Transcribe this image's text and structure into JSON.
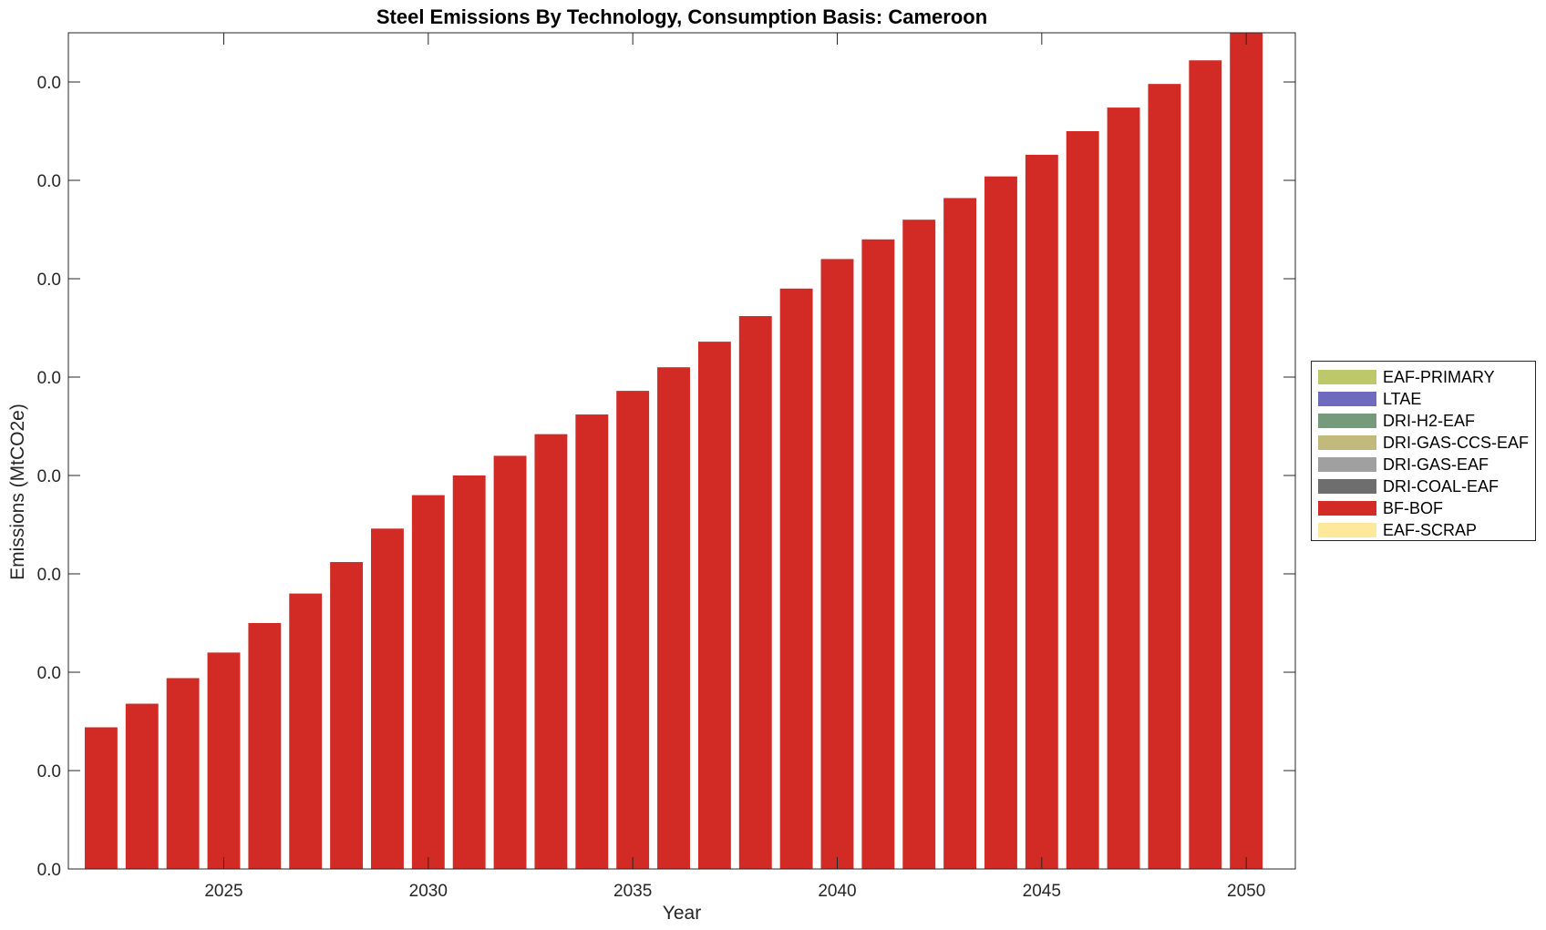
{
  "chart_data": {
    "type": "bar",
    "stacked": true,
    "title": "Steel Emissions By Technology, Consumption Basis: Cameroon",
    "xlabel": "Year",
    "ylabel": "Emissions (MtCO2e)",
    "x": [
      2022,
      2023,
      2024,
      2025,
      2026,
      2027,
      2028,
      2029,
      2030,
      2031,
      2032,
      2033,
      2034,
      2035,
      2036,
      2037,
      2038,
      2039,
      2040,
      2041,
      2042,
      2043,
      2044,
      2045,
      2046,
      2047,
      2048,
      2049,
      2050
    ],
    "xticks": [
      2025,
      2030,
      2035,
      2040,
      2045,
      2050
    ],
    "xticklabels": [
      "2025",
      "2030",
      "2035",
      "2040",
      "2045",
      "2050"
    ],
    "xlim": [
      2021.2,
      2051.2
    ],
    "ylim": [
      0,
      0.0425
    ],
    "yticks": [
      0,
      0.005,
      0.01,
      0.015,
      0.02,
      0.025,
      0.03,
      0.035,
      0.04
    ],
    "yticklabels": [
      "0.0",
      "0.0",
      "0.0",
      "0.0",
      "0.0",
      "0.0",
      "0.0",
      "0.0",
      "0.0"
    ],
    "grid": false,
    "legend_position": "right-outside",
    "series": [
      {
        "name": "EAF-PRIMARY",
        "color": "#bcc86a",
        "values": [
          0,
          0,
          0,
          0,
          0,
          0,
          0,
          0,
          0,
          0,
          0,
          0,
          0,
          0,
          0,
          0,
          0,
          0,
          0,
          0,
          0,
          0,
          0,
          0,
          0,
          0,
          0,
          0,
          0
        ]
      },
      {
        "name": "LTAE",
        "color": "#6e6abd",
        "values": [
          0,
          0,
          0,
          0,
          0,
          0,
          0,
          0,
          0,
          0,
          0,
          0,
          0,
          0,
          0,
          0,
          0,
          0,
          0,
          0,
          0,
          0,
          0,
          0,
          0,
          0,
          0,
          0,
          0
        ]
      },
      {
        "name": "DRI-H2-EAF",
        "color": "#759a7c",
        "values": [
          0,
          0,
          0,
          0,
          0,
          0,
          0,
          0,
          0,
          0,
          0,
          0,
          0,
          0,
          0,
          0,
          0,
          0,
          0,
          0,
          0,
          0,
          0,
          0,
          0,
          0,
          0,
          0,
          0
        ]
      },
      {
        "name": "DRI-GAS-CCS-EAF",
        "color": "#c2ba7c",
        "values": [
          0,
          0,
          0,
          0,
          0,
          0,
          0,
          0,
          0,
          0,
          0,
          0,
          0,
          0,
          0,
          0,
          0,
          0,
          0,
          0,
          0,
          0,
          0,
          0,
          0,
          0,
          0,
          0,
          0
        ]
      },
      {
        "name": "DRI-GAS-EAF",
        "color": "#a0a0a0",
        "values": [
          0,
          0,
          0,
          0,
          0,
          0,
          0,
          0,
          0,
          0,
          0,
          0,
          0,
          0,
          0,
          0,
          0,
          0,
          0,
          0,
          0,
          0,
          0,
          0,
          0,
          0,
          0,
          0,
          0
        ]
      },
      {
        "name": "DRI-COAL-EAF",
        "color": "#6e6e6e",
        "values": [
          0,
          0,
          0,
          0,
          0,
          0,
          0,
          0,
          0,
          0,
          0,
          0,
          0,
          0,
          0,
          0,
          0,
          0,
          0,
          0,
          0,
          0,
          0,
          0,
          0,
          0,
          0,
          0,
          0
        ]
      },
      {
        "name": "BF-BOF",
        "color": "#d22b25",
        "values": [
          0.0072,
          0.0084,
          0.0097,
          0.011,
          0.0125,
          0.014,
          0.0156,
          0.0173,
          0.019,
          0.02,
          0.021,
          0.0221,
          0.0231,
          0.0243,
          0.0255,
          0.0268,
          0.0281,
          0.0295,
          0.031,
          0.032,
          0.033,
          0.0341,
          0.0352,
          0.0363,
          0.0375,
          0.0387,
          0.0399,
          0.0411,
          0.0426
        ]
      },
      {
        "name": "EAF-SCRAP",
        "color": "#fde89b",
        "values": [
          0,
          0,
          0,
          0,
          0,
          0,
          0,
          0,
          0,
          0,
          0,
          0,
          0,
          0,
          0,
          0,
          0,
          0,
          0,
          0,
          0,
          0,
          0,
          0,
          0,
          0,
          0,
          0,
          0
        ]
      }
    ]
  }
}
